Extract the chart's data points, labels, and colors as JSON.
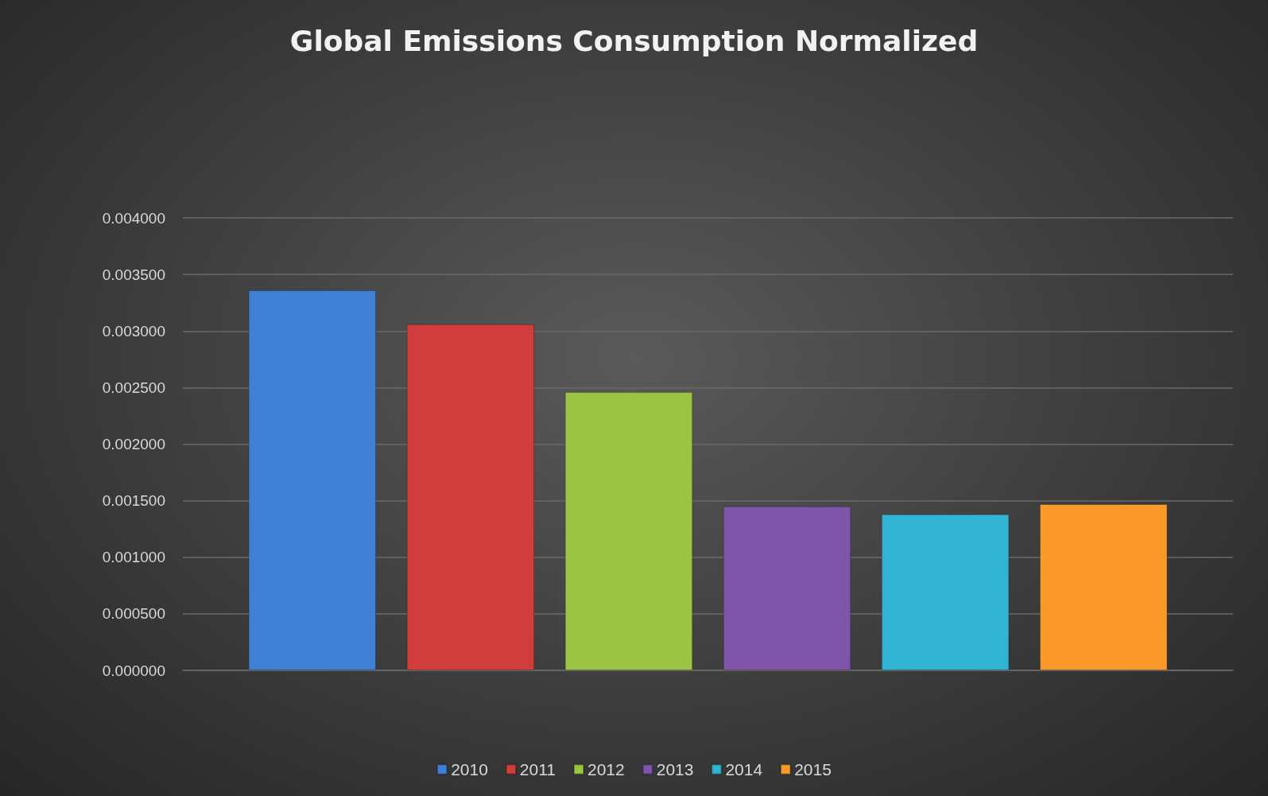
{
  "chart_data": {
    "type": "bar",
    "title": "Global Emissions Consumption Normalized",
    "categories": [
      null
    ],
    "series": [
      {
        "name": "2010",
        "color": "#3f7fd4",
        "values": [
          0.00336
        ]
      },
      {
        "name": "2011",
        "color": "#d13c3c",
        "values": [
          0.00306
        ]
      },
      {
        "name": "2012",
        "color": "#9bc444",
        "values": [
          0.00246
        ]
      },
      {
        "name": "2013",
        "color": "#7e55a8",
        "values": [
          0.00145
        ]
      },
      {
        "name": "2014",
        "color": "#31b4d4",
        "values": [
          0.00138
        ]
      },
      {
        "name": "2015",
        "color": "#f99a2a",
        "values": [
          0.00147
        ]
      }
    ],
    "ylim": [
      0,
      0.004
    ],
    "yticks": [
      {
        "value": 0,
        "label": "0.000000"
      },
      {
        "value": 0.0005,
        "label": "0.000500"
      },
      {
        "value": 0.001,
        "label": "0.001000"
      },
      {
        "value": 0.0015,
        "label": "0.001500"
      },
      {
        "value": 0.002,
        "label": "0.002000"
      },
      {
        "value": 0.0025,
        "label": "0.002500"
      },
      {
        "value": 0.003,
        "label": "0.003000"
      },
      {
        "value": 0.0035,
        "label": "0.003500"
      },
      {
        "value": 0.004,
        "label": "0.004000"
      }
    ],
    "grid": "y",
    "legend": "bottom"
  }
}
